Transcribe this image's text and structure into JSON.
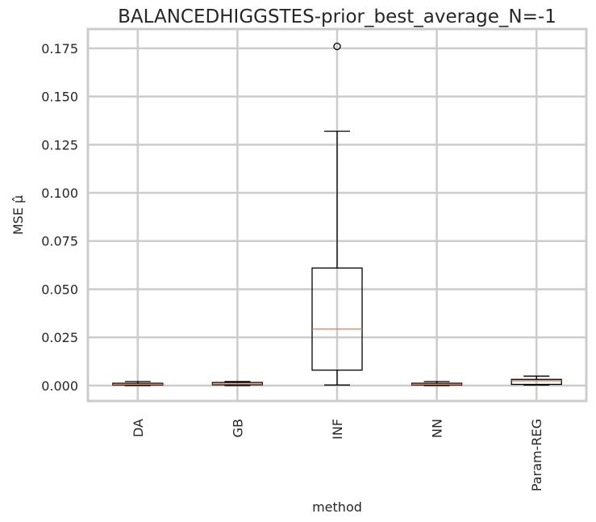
{
  "chart_data": {
    "type": "box",
    "title": "BALANCEDHIGGSTES-prior_best_average_N=-1",
    "xlabel": "method",
    "ylabel": "MSE μ̂",
    "categories": [
      "DA",
      "GB",
      "INF",
      "NN",
      "Param-REG"
    ],
    "yticks": [
      "0.000",
      "0.025",
      "0.050",
      "0.075",
      "0.100",
      "0.125",
      "0.150",
      "0.175"
    ],
    "ylim": [
      -0.008,
      0.185
    ],
    "grid": true,
    "boxes": [
      {
        "category": "DA",
        "whisker_low": 0.0,
        "q1": 0.0003,
        "median": 0.0006,
        "q3": 0.0012,
        "whisker_high": 0.0021,
        "outliers": []
      },
      {
        "category": "GB",
        "whisker_low": 0.0,
        "q1": 0.0004,
        "median": 0.0008,
        "q3": 0.0016,
        "whisker_high": 0.0021,
        "outliers": []
      },
      {
        "category": "INF",
        "whisker_low": 0.0003,
        "q1": 0.008,
        "median": 0.0293,
        "q3": 0.061,
        "whisker_high": 0.132,
        "outliers": [
          0.176
        ]
      },
      {
        "category": "NN",
        "whisker_low": 0.0,
        "q1": 0.0003,
        "median": 0.0006,
        "q3": 0.0012,
        "whisker_high": 0.0021,
        "outliers": []
      },
      {
        "category": "Param-REG",
        "whisker_low": 0.0003,
        "q1": 0.0006,
        "median": 0.0025,
        "q3": 0.0032,
        "whisker_high": 0.0049,
        "outliers": []
      }
    ],
    "colors": {
      "box": "#000000",
      "median": "#e07b54",
      "grid": "#cccccc",
      "axes_edge": "#cccccc"
    }
  }
}
